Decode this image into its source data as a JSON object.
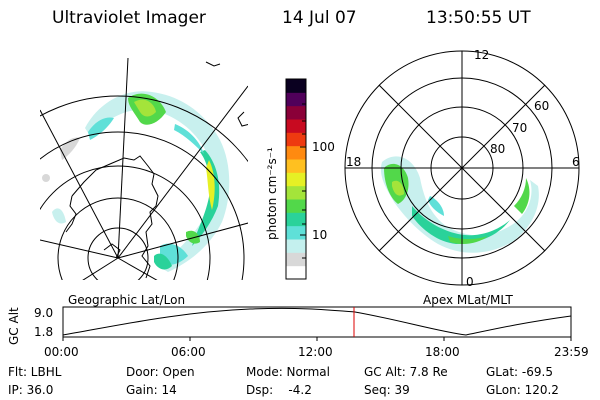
{
  "header": {
    "instrument": "Ultraviolet Imager",
    "date": "14 Jul 07",
    "time": "13:50:55 UT"
  },
  "left_panel": {
    "label": "Geographic Lat/Lon"
  },
  "right_panel": {
    "label": "Apex MLat/MLT",
    "lat_labels": [
      "60",
      "70",
      "80"
    ],
    "mlt_labels": {
      "top": "12",
      "left": "18",
      "right": "6",
      "bottom": "0"
    }
  },
  "colorbar": {
    "unit_label": "photon cm⁻²s⁻¹",
    "tick_labels": [
      "100",
      "10"
    ],
    "colors": [
      "#ffffff",
      "#d8d8d8",
      "#c4f0ee",
      "#5fe0d8",
      "#2ad29a",
      "#52d84a",
      "#a4e43a",
      "#e6f025",
      "#ffc020",
      "#ff8a10",
      "#ee3a10",
      "#c80a20",
      "#8a0038",
      "#50005a",
      "#0a0020"
    ]
  },
  "gc_alt_plot": {
    "ylabel": "GC Alt",
    "yticks": [
      "9.0",
      "1.8"
    ],
    "xticks": [
      "00:00",
      "06:00",
      "12:00",
      "18:00",
      "23:59"
    ],
    "current_marker_color": "#dd0000"
  },
  "info_rows": [
    [
      {
        "name": "flt",
        "text": "Flt: LBHL"
      },
      {
        "name": "door",
        "text": "Door: Open"
      },
      {
        "name": "mode",
        "text": "Mode: Normal"
      },
      {
        "name": "gc-alt",
        "text": "GC Alt: 7.8 Re"
      },
      {
        "name": "glat",
        "text": "GLat: -69.5"
      }
    ],
    [
      {
        "name": "ip",
        "text": "IP: 36.0"
      },
      {
        "name": "gain",
        "text": "Gain: 14"
      },
      {
        "name": "dsp",
        "text": "Dsp:    -4.2"
      },
      {
        "name": "seq",
        "text": "Seq: 39"
      },
      {
        "name": "glon",
        "text": "GLon: 120.2"
      }
    ]
  ]
}
